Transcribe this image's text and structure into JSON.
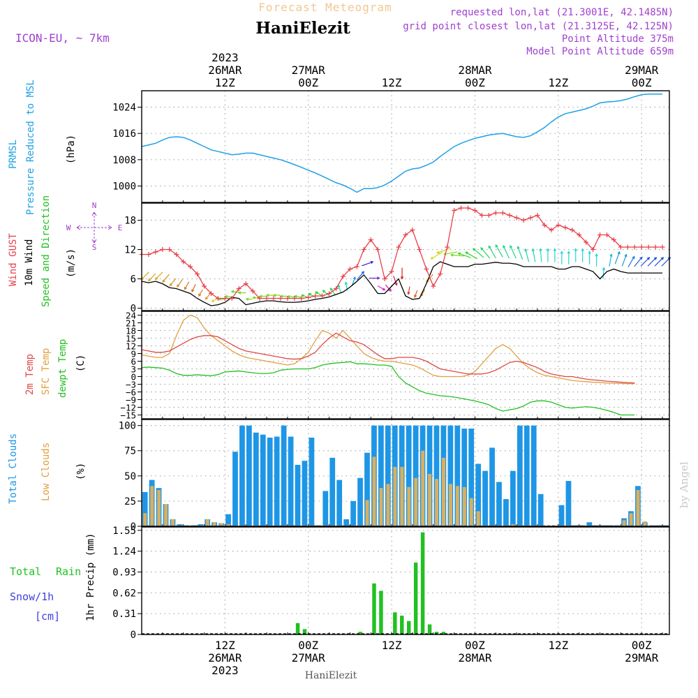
{
  "header": {
    "subtitle": "Forecast Meteogram",
    "location": "HaniElezit",
    "model": "ICON-EU, ~ 7km",
    "requested": "requested lon,lat (21.3001E, 42.1485N)",
    "gridpoint": "grid point closest lon,lat (21.3125E, 42.125N)",
    "point_alt": "Point Altitude 375m",
    "model_alt": "Model Point Altitude 659m",
    "footer_location": "HaniElezit",
    "credit": "by Angel"
  },
  "colors": {
    "pressure": "#1ea0e6",
    "gust": "#e8404a",
    "wind": "#000000",
    "t2m": "#e04848",
    "sfc": "#e0a040",
    "dewpt": "#22c022",
    "total_cloud": "#1e96e6",
    "low_cloud": "#d8b060",
    "rain": "#22c022",
    "snow": "#4040e0",
    "purple": "#a040d0",
    "title": "#f0c890"
  },
  "time_axis": {
    "top": [
      {
        "t": 12,
        "lines": [
          "2023",
          "26MAR",
          "12Z"
        ]
      },
      {
        "t": 24,
        "lines": [
          "27MAR",
          "00Z"
        ]
      },
      {
        "t": 36,
        "lines": [
          "12Z"
        ]
      },
      {
        "t": 48,
        "lines": [
          "28MAR",
          "00Z"
        ]
      },
      {
        "t": 60,
        "lines": [
          "12Z"
        ]
      },
      {
        "t": 72,
        "lines": [
          "29MAR",
          "00Z"
        ]
      }
    ],
    "bottom": [
      {
        "t": 12,
        "lines": [
          "12Z",
          "26MAR",
          "2023"
        ]
      },
      {
        "t": 24,
        "lines": [
          "00Z",
          "27MAR"
        ]
      },
      {
        "t": 36,
        "lines": [
          "12Z"
        ]
      },
      {
        "t": 48,
        "lines": [
          "00Z",
          "28MAR"
        ]
      },
      {
        "t": 60,
        "lines": [
          "12Z"
        ]
      },
      {
        "t": 72,
        "lines": [
          "00Z",
          "29MAR"
        ]
      }
    ]
  },
  "chart_data": [
    {
      "type": "line",
      "name": "pressure",
      "labels": [
        "PRMSL",
        "Pressure Reduced to MSL"
      ],
      "unit": "(hPa)",
      "yticks": [
        1000,
        1008,
        1016,
        1024
      ],
      "ylim": [
        995,
        1029
      ],
      "x": [
        0,
        1,
        2,
        3,
        4,
        5,
        6,
        7,
        8,
        9,
        10,
        11,
        12,
        13,
        14,
        15,
        16,
        17,
        18,
        19,
        20,
        21,
        22,
        23,
        24,
        25,
        26,
        27,
        28,
        29,
        30,
        31,
        32,
        33,
        34,
        35,
        36,
        37,
        38,
        39,
        40,
        41,
        42,
        43,
        44,
        45,
        46,
        47,
        48,
        49,
        50,
        51,
        52,
        53,
        54,
        55,
        56,
        57,
        58,
        59,
        60,
        61,
        62,
        63,
        64,
        65,
        66,
        67,
        68,
        69,
        70,
        71,
        72,
        73,
        74,
        75
      ],
      "values": [
        1012,
        1012.5,
        1013,
        1014,
        1014.8,
        1015,
        1014.8,
        1014,
        1013,
        1012,
        1011,
        1010.5,
        1010,
        1009.5,
        1009.7,
        1010,
        1010,
        1009.5,
        1009,
        1008.5,
        1008,
        1007.3,
        1006.5,
        1005.7,
        1004.8,
        1004,
        1003,
        1002,
        1001,
        1000.3,
        999.3,
        998.1,
        999.2,
        999.2,
        999.5,
        1000.3,
        1001.5,
        1003,
        1004.5,
        1005.2,
        1005.5,
        1006.3,
        1007.3,
        1009,
        1010.5,
        1012,
        1013,
        1013.8,
        1014.5,
        1015,
        1015.5,
        1015.8,
        1016,
        1015.5,
        1015,
        1014.8,
        1015.3,
        1016.5,
        1017.8,
        1019.5,
        1021,
        1022,
        1022.5,
        1023,
        1023.5,
        1024.3,
        1025.3,
        1025.6,
        1025.7,
        1026,
        1026.5,
        1027.2,
        1027.8,
        1028,
        1028,
        1028
      ]
    },
    {
      "type": "line",
      "name": "wind",
      "labels": [
        "Wind GUST",
        "10m Wind",
        "Speed and Direction"
      ],
      "unit": "(m/s)",
      "yticks": [
        0,
        6,
        12,
        18
      ],
      "ylim": [
        -0.5,
        21.5
      ],
      "compass": {
        "n": "N",
        "e": "E",
        "s": "S",
        "w": "W"
      },
      "x": [
        0,
        1,
        2,
        3,
        4,
        5,
        6,
        7,
        8,
        9,
        10,
        11,
        12,
        13,
        14,
        15,
        16,
        17,
        18,
        19,
        20,
        21,
        22,
        23,
        24,
        25,
        26,
        27,
        28,
        29,
        30,
        31,
        32,
        33,
        34,
        35,
        36,
        37,
        38,
        39,
        40,
        41,
        42,
        43,
        44,
        45,
        46,
        47,
        48,
        49,
        50,
        51,
        52,
        53,
        54,
        55,
        56,
        57,
        58,
        59,
        60,
        61,
        62,
        63,
        64,
        65,
        66,
        67,
        68,
        69,
        70,
        71,
        72,
        73,
        74,
        75
      ],
      "gust": [
        11,
        11,
        11.5,
        12,
        12,
        11,
        9.5,
        8.5,
        7,
        4.5,
        3,
        2,
        2,
        2,
        4,
        5,
        3.5,
        2,
        2,
        2,
        2,
        2,
        2,
        2,
        2.2,
        2.5,
        2.5,
        3,
        4,
        6.5,
        8,
        8.5,
        12,
        14,
        12,
        6,
        7.5,
        12.5,
        15,
        16,
        12,
        8,
        4.5,
        7,
        12.5,
        20,
        20.5,
        20.5,
        20,
        19,
        19,
        19.5,
        19.5,
        19,
        18.5,
        18,
        18.5,
        19,
        17,
        16,
        17,
        16.5,
        16,
        15,
        13.5,
        12,
        15,
        15,
        14,
        12.5,
        12.5,
        12.5,
        12.5,
        12.5,
        12.5,
        12.5
      ],
      "wind": [
        5.5,
        5.2,
        5.5,
        5,
        4.2,
        4,
        3.5,
        3,
        2,
        1.2,
        0.5,
        0.7,
        1.2,
        2.2,
        2,
        0.7,
        1,
        1.3,
        1.5,
        1.5,
        1.3,
        1.2,
        1.2,
        1.3,
        1.5,
        1.8,
        2,
        2.3,
        2.8,
        3.3,
        4.3,
        5.5,
        6.8,
        5,
        3,
        3,
        4.5,
        6,
        2.5,
        1.8,
        2,
        5,
        8.5,
        9.5,
        9,
        8.5,
        8.5,
        8.5,
        9,
        9,
        9.2,
        9.4,
        9.2,
        9.2,
        9,
        8.5,
        8.5,
        8.5,
        8.5,
        8.5,
        8,
        8,
        8.5,
        8.5,
        8,
        7.5,
        6,
        7.5,
        8,
        7.5,
        7.2,
        7.2,
        7.2,
        7.2,
        7.2,
        7.2
      ],
      "arrows_dir": [
        45,
        45,
        45,
        40,
        40,
        35,
        30,
        25,
        30,
        40,
        60,
        90,
        95,
        95,
        90,
        90,
        90,
        90,
        90,
        90,
        90,
        95,
        100,
        110,
        120,
        120,
        130,
        145,
        160,
        170,
        200,
        220,
        250,
        270,
        300,
        320,
        340,
        0,
        10,
        20,
        30,
        40,
        60,
        70,
        80,
        95,
        110,
        120,
        130,
        140,
        150,
        150,
        155,
        155,
        160,
        165,
        170,
        175,
        180,
        180,
        180,
        180,
        180,
        180,
        180,
        180,
        185,
        190,
        200,
        200,
        210,
        220,
        225,
        225,
        225,
        225
      ],
      "arrows_speed": [
        5.5,
        5.2,
        5.5,
        5,
        4.2,
        4,
        3.5,
        3,
        2,
        1.2,
        0.5,
        0.7,
        1.2,
        2.2,
        2,
        0.7,
        1,
        1.3,
        1.5,
        1.5,
        1.3,
        1.2,
        1.2,
        1.3,
        1.5,
        1.8,
        2,
        2.3,
        2.8,
        3.3,
        4.3,
        5.5,
        6.8,
        5,
        3,
        3,
        4.5,
        6,
        2.5,
        1.8,
        2,
        5,
        8.5,
        9.5,
        9,
        8.5,
        8.5,
        8.5,
        9,
        9,
        9.2,
        9.4,
        9.2,
        9.2,
        9,
        8.5,
        8.5,
        8.5,
        8.5,
        8.5,
        8,
        8,
        8.5,
        8.5,
        8,
        7.5,
        6,
        7.5,
        8,
        7.5,
        7.2,
        7.2,
        7.2,
        7.2,
        7.2,
        7.2
      ]
    },
    {
      "type": "line",
      "name": "temperature",
      "labels": [
        "2m Temp",
        "SFC Temp",
        "dewpt Temp"
      ],
      "unit": "(C)",
      "yticks": [
        -15,
        -12,
        -9,
        -6,
        -3,
        0,
        3,
        6,
        9,
        12,
        15,
        18,
        21,
        24
      ],
      "ylim": [
        -16.5,
        25.5
      ],
      "x": [
        0,
        1,
        2,
        3,
        4,
        5,
        6,
        7,
        8,
        9,
        10,
        11,
        12,
        13,
        14,
        15,
        16,
        17,
        18,
        19,
        20,
        21,
        22,
        23,
        24,
        25,
        26,
        27,
        28,
        29,
        30,
        31,
        32,
        33,
        34,
        35,
        36,
        37,
        38,
        39,
        40,
        41,
        42,
        43,
        44,
        45,
        46,
        47,
        48,
        49,
        50,
        51,
        52,
        53,
        54,
        55,
        56,
        57,
        58,
        59,
        60,
        61,
        62,
        63,
        64,
        65,
        66,
        67,
        68,
        69,
        70,
        71,
        72,
        73,
        74,
        75
      ],
      "t2m": [
        10.5,
        10,
        9.5,
        9.5,
        10,
        11.5,
        13,
        14.5,
        15.5,
        16,
        16,
        15.5,
        14,
        12.5,
        11,
        10,
        9.5,
        9,
        8.5,
        8,
        7.5,
        7,
        6.8,
        7,
        8,
        9.5,
        12.5,
        15,
        17,
        15.5,
        14,
        13.5,
        12.5,
        10.5,
        8.5,
        7,
        7,
        7.5,
        7.5,
        7.5,
        7,
        6,
        4.5,
        3,
        2.5,
        2,
        1.5,
        1,
        1,
        1,
        1.5,
        2.5,
        4,
        5.5,
        6,
        5.5,
        4.5,
        3.5,
        2,
        1,
        0.5,
        0,
        0,
        -0.5,
        -1,
        -1.3,
        -1.5,
        -1.8,
        -2,
        -2.2,
        -2.4,
        -2.5
      ],
      "sfc": [
        8.5,
        8,
        7.5,
        7.5,
        9,
        16,
        22,
        24,
        23,
        19,
        16,
        14,
        12,
        10,
        8.5,
        7.5,
        7,
        6.5,
        6,
        5.5,
        5,
        4.5,
        5,
        7,
        9.5,
        14,
        18,
        17,
        15,
        18,
        15,
        12,
        9,
        7.5,
        6.5,
        6,
        6,
        5.5,
        5,
        4.5,
        3.5,
        2,
        0.5,
        0,
        0,
        0,
        0,
        0.5,
        2,
        5,
        8,
        11,
        12.5,
        11,
        8,
        5,
        3,
        1.5,
        0.5,
        0,
        -0.5,
        -1,
        -1.5,
        -1.8,
        -2,
        -2.2,
        -2.3,
        -2.5,
        -2.6,
        -2.7,
        -2.8,
        -2.8
      ],
      "dewpt": [
        3.5,
        3.7,
        3.5,
        3.3,
        2.5,
        1.2,
        0.5,
        0.5,
        0.7,
        0.5,
        0.3,
        0.8,
        1.8,
        2,
        2.2,
        1.8,
        1.5,
        1.2,
        1.2,
        1.5,
        2.5,
        2.8,
        3,
        3,
        3,
        3.5,
        4.5,
        5,
        5.3,
        5.5,
        5.8,
        5,
        5,
        4.8,
        4.5,
        4.5,
        4,
        0,
        -2.5,
        -4,
        -5.5,
        -6.5,
        -7,
        -7.5,
        -7.7,
        -8,
        -8.5,
        -9,
        -9.5,
        -10.2,
        -11,
        -12.5,
        -13.5,
        -13,
        -12.5,
        -11.5,
        -10,
        -9.5,
        -9.5,
        -10,
        -11,
        -12,
        -12.3,
        -12,
        -11.8,
        -12,
        -12.5,
        -13.2,
        -14,
        -15,
        -15,
        -15
      ]
    },
    {
      "type": "bar",
      "name": "clouds",
      "labels": [
        "Total Clouds",
        "Low Clouds"
      ],
      "unit": "(%)",
      "yticks": [
        0,
        25,
        50,
        75,
        100
      ],
      "ylim": [
        0,
        106
      ],
      "x": [
        0,
        1,
        2,
        3,
        4,
        5,
        6,
        7,
        8,
        9,
        10,
        11,
        12,
        13,
        14,
        15,
        16,
        17,
        18,
        19,
        20,
        21,
        22,
        23,
        24,
        25,
        26,
        27,
        28,
        29,
        30,
        31,
        32,
        33,
        34,
        35,
        36,
        37,
        38,
        39,
        40,
        41,
        42,
        43,
        44,
        45,
        46,
        47,
        48,
        49,
        50,
        51,
        52,
        53,
        54,
        55,
        56,
        57,
        58,
        59,
        60,
        61,
        62,
        63,
        64,
        65,
        66,
        67,
        68,
        69,
        70,
        71,
        72,
        73,
        74,
        75
      ],
      "total": [
        34,
        46,
        38,
        22,
        7,
        2,
        1,
        1,
        2,
        7,
        4,
        3,
        12,
        74,
        100,
        100,
        93,
        91,
        88,
        89,
        100,
        89,
        61,
        65,
        88,
        1,
        35,
        68,
        46,
        7,
        25,
        48,
        73,
        100,
        100,
        100,
        100,
        100,
        100,
        100,
        100,
        100,
        100,
        100,
        100,
        100,
        97,
        97,
        62,
        55,
        78,
        44,
        27,
        55,
        100,
        100,
        100,
        32,
        0,
        0,
        21,
        45,
        1,
        1,
        4,
        1,
        1,
        1,
        1,
        8,
        15,
        40,
        4,
        1,
        1,
        1
      ],
      "low": [
        13,
        40,
        36,
        22,
        7,
        0,
        0,
        0,
        0,
        7,
        4,
        3,
        2,
        0,
        0,
        0,
        0,
        0,
        0,
        0,
        0,
        0,
        0,
        0,
        0,
        0,
        0,
        0,
        0,
        0,
        0,
        0,
        26,
        69,
        38,
        42,
        59,
        59,
        39,
        48,
        75,
        52,
        47,
        68,
        42,
        40,
        39,
        28,
        15,
        0,
        0,
        0,
        0,
        2,
        0,
        0,
        0,
        0,
        0,
        0,
        0,
        0,
        0,
        0,
        0,
        0,
        0,
        0,
        0,
        6,
        13,
        36,
        5,
        0,
        0,
        0
      ]
    },
    {
      "type": "bar",
      "name": "precip",
      "labels": [
        "Total",
        "Rain",
        "Snow/1h",
        "[cm]"
      ],
      "unit": "1hr Precip (mm)",
      "yticks": [
        0,
        0.31,
        0.62,
        0.93,
        1.24,
        1.55
      ],
      "ylim": [
        0,
        1.6
      ],
      "x": [
        0,
        1,
        2,
        3,
        4,
        5,
        6,
        7,
        8,
        9,
        10,
        11,
        12,
        13,
        14,
        15,
        16,
        17,
        18,
        19,
        20,
        21,
        22,
        23,
        24,
        25,
        26,
        27,
        28,
        29,
        30,
        31,
        32,
        33,
        34,
        35,
        36,
        37,
        38,
        39,
        40,
        41,
        42,
        43,
        44,
        45,
        46,
        47,
        48,
        49,
        50,
        51,
        52,
        53,
        54,
        55,
        56,
        57,
        58,
        59,
        60,
        61,
        62,
        63,
        64,
        65,
        66,
        67,
        68,
        69,
        70,
        71,
        72,
        73,
        74,
        75
      ],
      "values": [
        0,
        0,
        0,
        0,
        0,
        0,
        0,
        0,
        0,
        0,
        0,
        0,
        0,
        0,
        0,
        0,
        0,
        0,
        0,
        0,
        0,
        0,
        0.17,
        0.08,
        0,
        0,
        0,
        0,
        0,
        0,
        0,
        0.04,
        0,
        0.76,
        0.65,
        0,
        0.33,
        0.28,
        0.2,
        1.07,
        1.52,
        0.15,
        0.04,
        0.04,
        0,
        0,
        0,
        0,
        0,
        0,
        0,
        0,
        0,
        0,
        0,
        0,
        0,
        0,
        0,
        0,
        0,
        0,
        0,
        0,
        0,
        0,
        0,
        0,
        0,
        0,
        0,
        0,
        0,
        0,
        0,
        0
      ]
    }
  ]
}
